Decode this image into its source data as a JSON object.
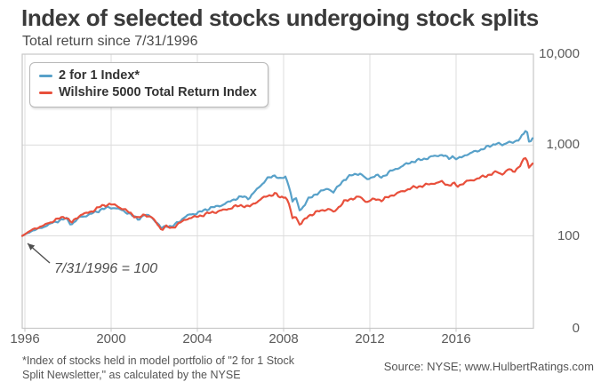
{
  "chart_data": {
    "type": "line",
    "title": "Index of selected stocks undergoing stock splits",
    "subtitle": "Total return since 7/31/1996",
    "x_range": [
      1996.58,
      2019.62
    ],
    "y_scale": "log",
    "grid": true,
    "legend_position": "top-left",
    "x_ticks": {
      "labels": [
        "1996",
        "2000",
        "2004",
        "2008",
        "2012",
        "2016"
      ],
      "values": [
        1996,
        2000,
        2004,
        2008,
        2012,
        2016
      ]
    },
    "y_ticks": {
      "labels": [
        "10,000",
        "1,000",
        "100",
        "0"
      ],
      "values": [
        10000,
        1000,
        100,
        0
      ]
    },
    "annotation": {
      "text": "7/31/1996 = 100",
      "target": {
        "x": 1996.58,
        "y": 100
      }
    },
    "x": [
      1996.58,
      1997.0,
      1997.6,
      1998.1,
      1998.55,
      1998.8,
      1999.2,
      1999.6,
      2000.1,
      2000.5,
      2000.8,
      2001.2,
      2001.8,
      2002.1,
      2002.4,
      2002.85,
      2003.1,
      2003.3,
      2003.7,
      2004.1,
      2004.5,
      2005.0,
      2005.4,
      2005.8,
      2006.2,
      2006.5,
      2006.8,
      2007.2,
      2007.6,
      2008.0,
      2008.2,
      2008.45,
      2008.65,
      2008.75,
      2008.9,
      2009.1,
      2009.45,
      2009.95,
      2010.4,
      2010.6,
      2011.1,
      2011.45,
      2011.8,
      2012.1,
      2012.5,
      2012.8,
      2013.1,
      2013.6,
      2014.1,
      2014.6,
      2015.1,
      2015.5,
      2015.8,
      2016.0,
      2016.2,
      2016.6,
      2017.0,
      2017.5,
      2018.0,
      2018.2,
      2018.5,
      2018.75,
      2019.0,
      2019.3,
      2019.42,
      2019.52,
      2019.62
    ],
    "series": [
      {
        "name": "2 for 1 Index*",
        "color": "#58a1c9",
        "values": [
          100,
          113,
          128,
          145,
          157,
          135,
          163,
          172,
          195,
          208,
          203,
          188,
          154,
          170,
          164,
          121,
          131,
          124,
          148,
          170,
          178,
          200,
          210,
          228,
          255,
          268,
          258,
          330,
          420,
          462,
          420,
          440,
          330,
          235,
          262,
          186,
          250,
          302,
          332,
          302,
          420,
          470,
          490,
          420,
          465,
          445,
          505,
          575,
          655,
          700,
          755,
          790,
          715,
          758,
          700,
          790,
          850,
          940,
          1060,
          980,
          1100,
          1040,
          1180,
          1480,
          1060,
          1130,
          1230
        ]
      },
      {
        "name": "Wilshire 5000 Total Return Index",
        "color": "#e8503c",
        "values": [
          100,
          116,
          132,
          152,
          164,
          140,
          172,
          182,
          212,
          226,
          218,
          196,
          158,
          172,
          163,
          119,
          128,
          121,
          140,
          158,
          163,
          178,
          185,
          195,
          210,
          215,
          207,
          240,
          272,
          288,
          262,
          270,
          205,
          152,
          165,
          131,
          163,
          186,
          197,
          181,
          238,
          258,
          268,
          237,
          256,
          247,
          272,
          303,
          338,
          358,
          382,
          396,
          362,
          380,
          356,
          398,
          424,
          462,
          510,
          478,
          540,
          515,
          585,
          755,
          560,
          610,
          655
        ]
      }
    ]
  },
  "footer": {
    "note_lines": [
      "*Index of stocks held in model portfolio of \"2 for 1 Stock",
      "Split Newsletter,\" as calculated by the NYSE"
    ],
    "source": "Source: NYSE; www.HulbertRatings.com"
  }
}
